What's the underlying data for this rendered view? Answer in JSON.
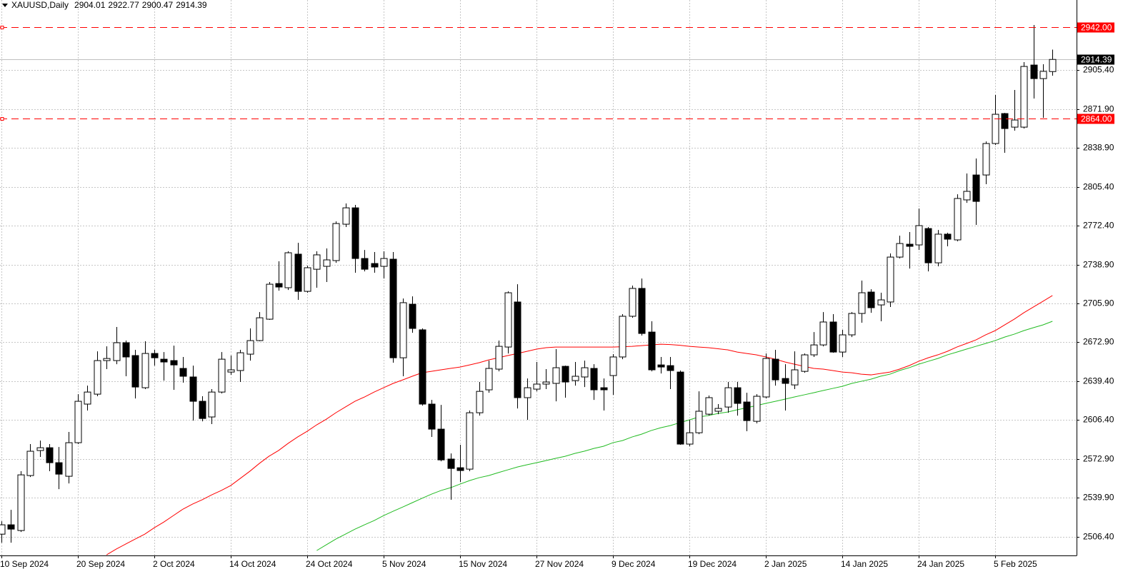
{
  "chart_data": {
    "type": "candlestick",
    "title": "XAUUSD,Daily",
    "categories": [
      "10 Sep 2024",
      null,
      null,
      null,
      null,
      null,
      null,
      null,
      "20 Sep 2024",
      null,
      null,
      null,
      null,
      null,
      null,
      null,
      "2 Oct 2024",
      null,
      null,
      null,
      null,
      null,
      null,
      null,
      "14 Oct 2024",
      null,
      null,
      null,
      null,
      null,
      null,
      null,
      "24 Oct 2024",
      null,
      null,
      null,
      null,
      null,
      null,
      null,
      "5 Nov 2024",
      null,
      null,
      null,
      null,
      null,
      null,
      null,
      "15 Nov 2024",
      null,
      null,
      null,
      null,
      null,
      null,
      null,
      "27 Nov 2024",
      null,
      null,
      null,
      null,
      null,
      null,
      null,
      "9 Dec 2024",
      null,
      null,
      null,
      null,
      null,
      null,
      null,
      "19 Dec 2024",
      null,
      null,
      null,
      null,
      null,
      null,
      null,
      "2 Jan 2025",
      null,
      null,
      null,
      null,
      null,
      null,
      null,
      "14 Jan 2025",
      null,
      null,
      null,
      null,
      null,
      null,
      null,
      "24 Jan 2025",
      null,
      null,
      null,
      null,
      null,
      null,
      null,
      "5 Feb 2025",
      null,
      null,
      null,
      null,
      null,
      null
    ],
    "open": [
      2508.5,
      2516.5,
      2511.6,
      2558.6,
      2580.0,
      2582.4,
      2569.6,
      2558.0,
      2586.7,
      2619.7,
      2628.2,
      2656.9,
      2656.9,
      2672.2,
      2661.2,
      2633.7,
      2663.0,
      2658.1,
      2656.9,
      2650.2,
      2642.9,
      2622.1,
      2608.7,
      2630.0,
      2647.1,
      2648.4,
      2662.4,
      2674.0,
      2692.3,
      2722.8,
      2719.2,
      2747.9,
      2716.1,
      2735.0,
      2737.5,
      2742.4,
      2773.5,
      2787.5,
      2744.2,
      2739.9,
      2737.5,
      2743.6,
      2659.3,
      2705.1,
      2683.2,
      2619.7,
      2598.3,
      2572.7,
      2565.3,
      2564.1,
      2612.3,
      2631.9,
      2649.6,
      2668.5,
      2707.0,
      2625.2,
      2632.5,
      2636.8,
      2637.4,
      2652.0,
      2639.8,
      2642.9,
      2650.2,
      2633.7,
      2644.1,
      2660.0,
      2694.8,
      2718.6,
      2681.3,
      2653.2,
      2652.6,
      2647.1,
      2585.5,
      2595.2,
      2611.1,
      2613.6,
      2617.2,
      2633.7,
      2621.5,
      2605.0,
      2625.8,
      2658.1,
      2641.6,
      2636.1,
      2647.7,
      2661.8,
      2670.3,
      2689.9,
      2664.2,
      2678.9,
      2697.2,
      2715.5,
      2704.5,
      2707.0,
      2745.4,
      2756.4,
      2755.8,
      2769.8,
      2740.5,
      2765.0,
      2760.1,
      2794.3,
      2815.6,
      2815.6,
      2842.5,
      2868.1,
      2856.5,
      2856.5,
      2909.6,
      2898.0,
      2904.01
    ],
    "high": [
      2519.5,
      2529.3,
      2562.3,
      2585.5,
      2588.5,
      2585.5,
      2583.0,
      2595.9,
      2628.2,
      2635.5,
      2664.8,
      2669.1,
      2685.6,
      2674.0,
      2666.1,
      2673.4,
      2666.1,
      2664.2,
      2669.7,
      2660.0,
      2652.6,
      2626.4,
      2632.5,
      2664.2,
      2661.2,
      2666.1,
      2684.4,
      2698.4,
      2724.1,
      2741.8,
      2750.3,
      2757.6,
      2738.1,
      2750.3,
      2752.8,
      2775.9,
      2791.2,
      2790.0,
      2751.5,
      2749.7,
      2750.3,
      2749.7,
      2710.0,
      2711.8,
      2684.4,
      2623.3,
      2619.0,
      2577.5,
      2584.9,
      2614.2,
      2638.6,
      2656.9,
      2674.0,
      2716.1,
      2722.2,
      2641.6,
      2655.7,
      2649.6,
      2666.7,
      2652.6,
      2655.7,
      2656.9,
      2653.8,
      2641.6,
      2662.4,
      2696.6,
      2721.0,
      2727.1,
      2690.5,
      2660.0,
      2660.0,
      2648.4,
      2606.2,
      2630.6,
      2627.0,
      2619.7,
      2638.6,
      2638.6,
      2629.4,
      2628.2,
      2663.0,
      2666.1,
      2653.8,
      2664.8,
      2663.0,
      2681.3,
      2698.4,
      2696.6,
      2683.2,
      2698.4,
      2725.3,
      2717.9,
      2714.9,
      2748.5,
      2763.7,
      2766.8,
      2786.9,
      2771.1,
      2768.6,
      2766.2,
      2799.1,
      2816.9,
      2829.7,
      2844.3,
      2884.0,
      2868.7,
      2888.3,
      2912.1,
      2943.8,
      2910.3,
      2922.77
    ],
    "low": [
      2501.2,
      2501.2,
      2510.4,
      2557.4,
      2574.5,
      2562.3,
      2547.0,
      2551.9,
      2585.5,
      2614.2,
      2626.4,
      2649.6,
      2653.8,
      2643.5,
      2624.5,
      2632.5,
      2652.6,
      2639.8,
      2631.9,
      2638.0,
      2605.6,
      2605.0,
      2602.6,
      2628.8,
      2644.7,
      2638.6,
      2656.9,
      2673.4,
      2691.7,
      2716.7,
      2717.3,
      2708.8,
      2714.9,
      2719.2,
      2724.1,
      2740.5,
      2771.1,
      2732.0,
      2733.2,
      2732.0,
      2727.1,
      2655.1,
      2643.5,
      2680.7,
      2618.4,
      2591.6,
      2570.8,
      2537.9,
      2553.1,
      2562.3,
      2609.9,
      2629.4,
      2647.7,
      2663.0,
      2616.0,
      2606.2,
      2630.6,
      2632.5,
      2622.1,
      2625.2,
      2635.5,
      2634.3,
      2623.3,
      2614.2,
      2627.6,
      2658.1,
      2693.5,
      2678.3,
      2647.7,
      2645.9,
      2632.5,
      2584.9,
      2583.6,
      2594.0,
      2609.9,
      2611.1,
      2612.3,
      2609.9,
      2596.5,
      2603.2,
      2624.5,
      2635.5,
      2614.2,
      2632.5,
      2646.5,
      2660.0,
      2669.1,
      2663.6,
      2660.0,
      2677.0,
      2689.3,
      2697.8,
      2690.5,
      2702.7,
      2744.2,
      2735.6,
      2751.5,
      2733.2,
      2737.5,
      2754.6,
      2758.9,
      2791.8,
      2772.9,
      2807.7,
      2841.3,
      2834.6,
      2853.5,
      2855.3,
      2881.0,
      2864.5,
      2900.47
    ],
    "close": [
      2516.5,
      2512.8,
      2559.2,
      2579.4,
      2582.4,
      2569.6,
      2559.8,
      2586.7,
      2622.1,
      2630.0,
      2656.9,
      2658.7,
      2672.2,
      2660.0,
      2634.3,
      2663.0,
      2659.3,
      2655.7,
      2653.2,
      2643.5,
      2622.1,
      2607.4,
      2630.0,
      2658.1,
      2649.0,
      2663.6,
      2674.0,
      2693.5,
      2722.2,
      2719.8,
      2749.1,
      2716.1,
      2736.3,
      2747.3,
      2743.0,
      2774.1,
      2787.5,
      2744.2,
      2735.0,
      2736.9,
      2744.2,
      2659.3,
      2706.4,
      2684.4,
      2619.7,
      2598.3,
      2572.0,
      2564.7,
      2562.9,
      2612.3,
      2630.6,
      2650.2,
      2669.1,
      2714.9,
      2625.2,
      2633.7,
      2636.8,
      2638.6,
      2650.8,
      2638.6,
      2643.5,
      2650.8,
      2631.9,
      2631.9,
      2660.0,
      2694.8,
      2718.6,
      2680.1,
      2649.0,
      2651.4,
      2648.4,
      2585.5,
      2595.2,
      2613.6,
      2625.2,
      2616.0,
      2633.7,
      2620.3,
      2605.6,
      2626.4,
      2658.7,
      2640.4,
      2637.4,
      2649.0,
      2661.8,
      2670.3,
      2689.9,
      2664.2,
      2678.9,
      2697.2,
      2714.9,
      2702.1,
      2708.8,
      2745.4,
      2757.0,
      2754.6,
      2772.3,
      2740.5,
      2765.0,
      2760.7,
      2795.5,
      2801.6,
      2793.0,
      2842.5,
      2867.5,
      2855.3,
      2862.6,
      2908.4,
      2898.0,
      2904.2,
      2914.39
    ],
    "up_color": "#ffffff",
    "down_color": "#000000",
    "edge_color": "#000000",
    "lines": [
      {
        "color": "#ff0000",
        "values": [
          null,
          null,
          null,
          null,
          null,
          null,
          null,
          null,
          null,
          null,
          null,
          2490.8,
          2495.7,
          2500.0,
          2504.3,
          2508.5,
          2514.0,
          2518.9,
          2524.4,
          2529.9,
          2534.2,
          2537.9,
          2542.1,
          2545.8,
          2550.1,
          2556.2,
          2562.3,
          2569.0,
          2575.1,
          2580.0,
          2586.1,
          2591.6,
          2596.5,
          2602.0,
          2606.8,
          2612.3,
          2617.2,
          2622.1,
          2625.8,
          2630.0,
          2633.7,
          2637.4,
          2640.4,
          2643.5,
          2646.5,
          2647.7,
          2649.0,
          2650.2,
          2651.4,
          2653.2,
          2655.1,
          2657.5,
          2659.3,
          2661.2,
          2663.0,
          2664.8,
          2666.7,
          2667.9,
          2668.5,
          2668.5,
          2668.5,
          2668.5,
          2668.5,
          2668.5,
          2668.5,
          2668.8,
          2669.1,
          2669.7,
          2670.3,
          2670.9,
          2670.6,
          2670.0,
          2669.1,
          2668.5,
          2667.9,
          2667.0,
          2666.1,
          2664.2,
          2663.0,
          2661.8,
          2660.0,
          2658.1,
          2655.7,
          2653.8,
          2652.0,
          2650.2,
          2649.6,
          2648.4,
          2647.1,
          2646.5,
          2645.3,
          2644.7,
          2645.9,
          2647.1,
          2649.6,
          2652.6,
          2656.3,
          2659.3,
          2661.8,
          2664.8,
          2668.5,
          2671.5,
          2674.6,
          2678.9,
          2682.5,
          2687.4,
          2692.3,
          2697.8,
          2702.7,
          2707.6,
          2712.5
        ]
      },
      {
        "color": "#22bb22",
        "values": [
          null,
          null,
          null,
          null,
          null,
          null,
          null,
          null,
          null,
          null,
          null,
          null,
          null,
          null,
          null,
          null,
          null,
          null,
          null,
          null,
          null,
          null,
          null,
          null,
          null,
          null,
          null,
          null,
          null,
          null,
          null,
          null,
          null,
          2494.5,
          2499.4,
          2504.3,
          2508.5,
          2512.8,
          2516.5,
          2520.1,
          2524.4,
          2528.1,
          2531.7,
          2535.4,
          2539.1,
          2542.7,
          2545.8,
          2548.2,
          2551.3,
          2554.3,
          2556.8,
          2558.6,
          2561.1,
          2563.5,
          2565.9,
          2567.8,
          2569.6,
          2571.4,
          2573.3,
          2575.1,
          2577.5,
          2579.4,
          2581.8,
          2583.6,
          2586.7,
          2588.5,
          2591.6,
          2594.0,
          2597.1,
          2599.5,
          2601.3,
          2603.8,
          2606.2,
          2608.7,
          2609.9,
          2611.7,
          2612.9,
          2614.8,
          2616.6,
          2618.4,
          2620.3,
          2622.1,
          2623.9,
          2625.8,
          2627.6,
          2629.4,
          2631.3,
          2633.1,
          2634.9,
          2637.4,
          2639.2,
          2641.0,
          2643.5,
          2645.3,
          2648.4,
          2650.8,
          2653.8,
          2656.3,
          2658.7,
          2661.8,
          2664.2,
          2666.7,
          2669.1,
          2671.5,
          2674.0,
          2677.0,
          2679.5,
          2682.5,
          2685.0,
          2687.4,
          2690.5
        ]
      }
    ],
    "hlines": [
      {
        "value": 2942,
        "label": "2942.00",
        "color": "#ff0000"
      },
      {
        "value": 2864,
        "label": "2864.00",
        "color": "#ff0000"
      }
    ],
    "ylim": [
      2490.3,
      2965.2
    ],
    "yticks": [
      {
        "value": 2506.4,
        "label": "2506.40"
      },
      {
        "value": 2539.9,
        "label": "2539.90"
      },
      {
        "value": 2572.9,
        "label": "2572.90"
      },
      {
        "value": 2606.4,
        "label": "2606.40"
      },
      {
        "value": 2639.4,
        "label": "2639.40"
      },
      {
        "value": 2672.9,
        "label": "2672.90"
      },
      {
        "value": 2705.9,
        "label": "2705.90"
      },
      {
        "value": 2738.9,
        "label": "2738.90"
      },
      {
        "value": 2772.4,
        "label": "2772.40"
      },
      {
        "value": 2805.4,
        "label": "2805.40"
      },
      {
        "value": 2838.9,
        "label": "2838.90"
      },
      {
        "value": 2871.9,
        "label": "2871.90"
      },
      {
        "value": 2905.4,
        "label": "2905.40"
      }
    ],
    "grid": true
  }
}
